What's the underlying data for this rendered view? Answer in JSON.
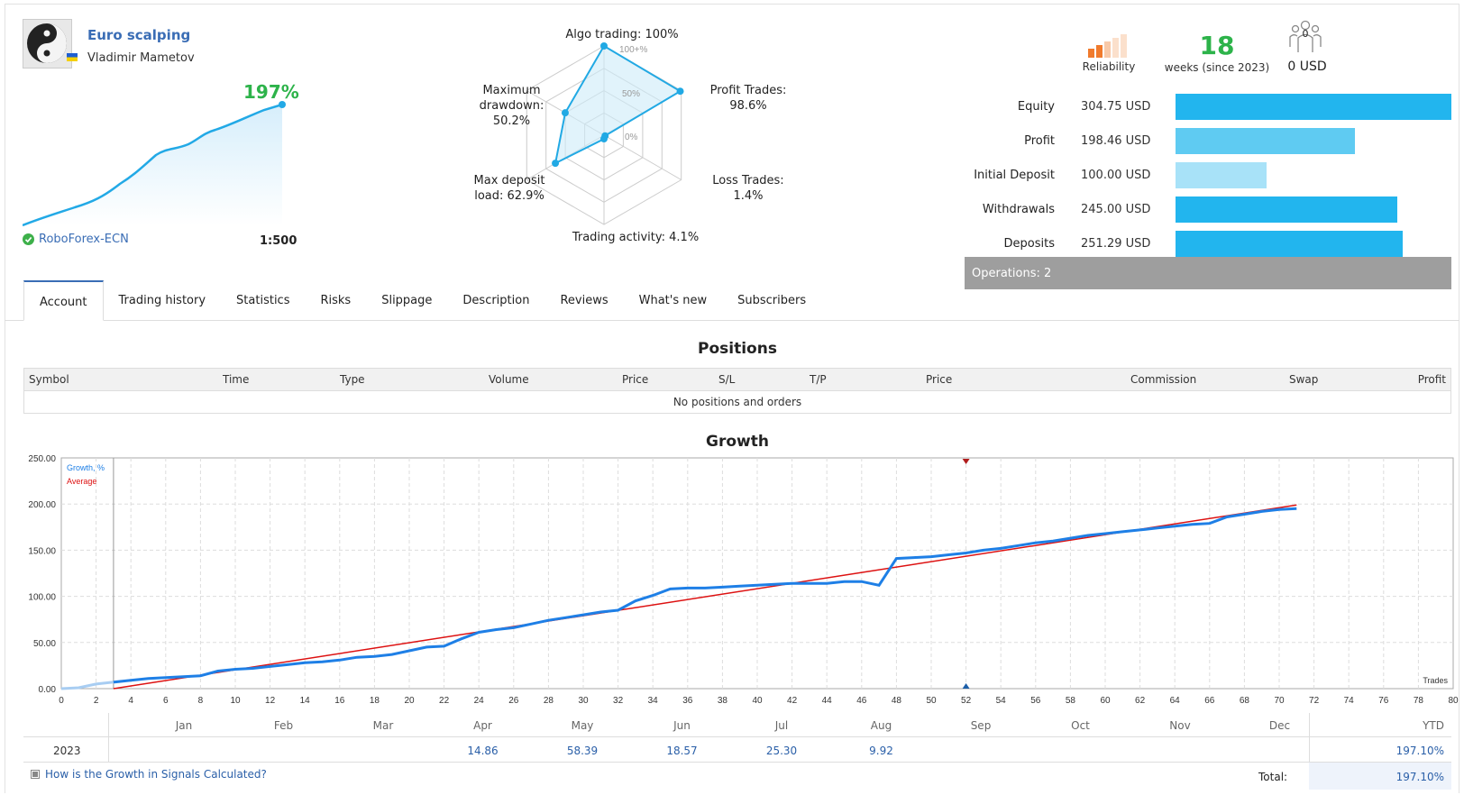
{
  "signal": {
    "name": "Euro scalping",
    "author": "Vladimir Mametov",
    "growth": "197%",
    "broker": "RoboForex-ECN",
    "leverage": "1:500"
  },
  "radar": {
    "algo": "Algo trading: 100%",
    "profit_trades_title": "Profit Trades:",
    "profit_trades_value": "98.6%",
    "loss_trades_title": "Loss Trades:",
    "loss_trades_value": "1.4%",
    "activity": "Trading activity: 4.1%",
    "max_load_title": "Max deposit",
    "max_load_value": "load: 62.9%",
    "drawdown_title": "Maximum",
    "drawdown_sub": "drawdown:",
    "drawdown_value": "50.2%",
    "scale_100": "100+%",
    "scale_50": "50%",
    "scale_0": "0%"
  },
  "summary": {
    "reliability_label": "Reliability",
    "weeks_value": "18",
    "weeks_label": "weeks (since 2023)",
    "subscribers_count": "0",
    "subscribers_value": "0 USD"
  },
  "balance_rows": [
    {
      "label": "Equity",
      "value": "304.75 USD",
      "fraction": 1.0,
      "color": "#22b5ee"
    },
    {
      "label": "Profit",
      "value": "198.46 USD",
      "fraction": 0.65,
      "color": "#5fcbf2"
    },
    {
      "label": "Initial Deposit",
      "value": "100.00 USD",
      "fraction": 0.33,
      "color": "#a8e2f8"
    },
    {
      "label": "Withdrawals",
      "value": "245.00 USD",
      "fraction": 0.804,
      "color": "#22b5ee"
    },
    {
      "label": "Deposits",
      "value": "251.29 USD",
      "fraction": 0.825,
      "color": "#22b5ee"
    }
  ],
  "operations": "Operations: 2",
  "tabs": [
    "Account",
    "Trading history",
    "Statistics",
    "Risks",
    "Slippage",
    "Description",
    "Reviews",
    "What's new",
    "Subscribers"
  ],
  "positions": {
    "title": "Positions",
    "columns": [
      "Symbol",
      "Time",
      "Type",
      "Volume",
      "Price",
      "S/L",
      "T/P",
      "Price",
      "Commission",
      "Swap",
      "Profit"
    ],
    "empty": "No positions and orders"
  },
  "growth": {
    "title": "Growth",
    "legend_growth": "Growth, %",
    "legend_average": "Average",
    "x_axis_label": "Trades",
    "months": [
      "Jan",
      "Feb",
      "Mar",
      "Apr",
      "May",
      "Jun",
      "Jul",
      "Aug",
      "Sep",
      "Oct",
      "Nov",
      "Dec"
    ],
    "ytd_label": "YTD",
    "year": "2023",
    "monthly_values": [
      "",
      "",
      "",
      "14.86",
      "58.39",
      "18.57",
      "25.30",
      "9.92",
      "",
      "",
      "",
      ""
    ],
    "ytd_value": "197.10%",
    "total_label": "Total:",
    "total_value": "197.10%",
    "help_link": "How is the Growth in Signals Calculated?"
  },
  "chart_data": {
    "type": "line",
    "title": "Growth",
    "xlabel": "Trades",
    "ylabel": "",
    "xlim": [
      0,
      80
    ],
    "ylim": [
      0,
      250
    ],
    "x_ticks": [
      0,
      2,
      4,
      6,
      8,
      10,
      12,
      14,
      16,
      18,
      20,
      22,
      24,
      26,
      28,
      30,
      32,
      34,
      36,
      38,
      40,
      42,
      44,
      46,
      48,
      50,
      52,
      54,
      56,
      58,
      60,
      62,
      64,
      66,
      68,
      70,
      72,
      74,
      76,
      78,
      80
    ],
    "y_ticks": [
      "0.00",
      "50.00",
      "100.00",
      "150.00",
      "200.00",
      "250.00"
    ],
    "series": [
      {
        "name": "Growth, %",
        "color": "#1e7fe6",
        "x": [
          0,
          1,
          2,
          3,
          4,
          5,
          6,
          7,
          8,
          9,
          10,
          11,
          12,
          13,
          14,
          15,
          16,
          17,
          18,
          19,
          20,
          21,
          22,
          23,
          24,
          25,
          26,
          27,
          28,
          29,
          30,
          31,
          32,
          33,
          34,
          35,
          36,
          37,
          38,
          39,
          40,
          41,
          42,
          43,
          44,
          45,
          46,
          47,
          48,
          49,
          50,
          51,
          52,
          53,
          54,
          55,
          56,
          57,
          58,
          59,
          60,
          61,
          62,
          63,
          64,
          65,
          66,
          67,
          68,
          69,
          70,
          71
        ],
        "y": [
          0,
          1,
          5,
          7,
          9,
          11,
          12,
          13,
          14,
          19,
          21,
          22,
          24,
          26,
          28,
          29,
          31,
          34,
          35,
          37,
          41,
          45,
          46,
          54,
          61,
          64,
          66,
          70,
          74,
          77,
          80,
          83,
          85,
          95,
          101,
          108,
          109,
          109,
          110,
          111,
          112,
          113,
          114,
          114,
          114,
          116,
          116,
          112,
          141,
          142,
          143,
          145,
          147,
          150,
          152,
          155,
          158,
          160,
          163,
          166,
          168,
          170,
          172,
          174,
          176,
          178,
          179,
          186,
          189,
          192,
          194,
          195
        ]
      },
      {
        "name": "Average",
        "color": "#dd1111",
        "x": [
          3,
          71
        ],
        "y": [
          0,
          199
        ]
      }
    ],
    "grid": true
  }
}
